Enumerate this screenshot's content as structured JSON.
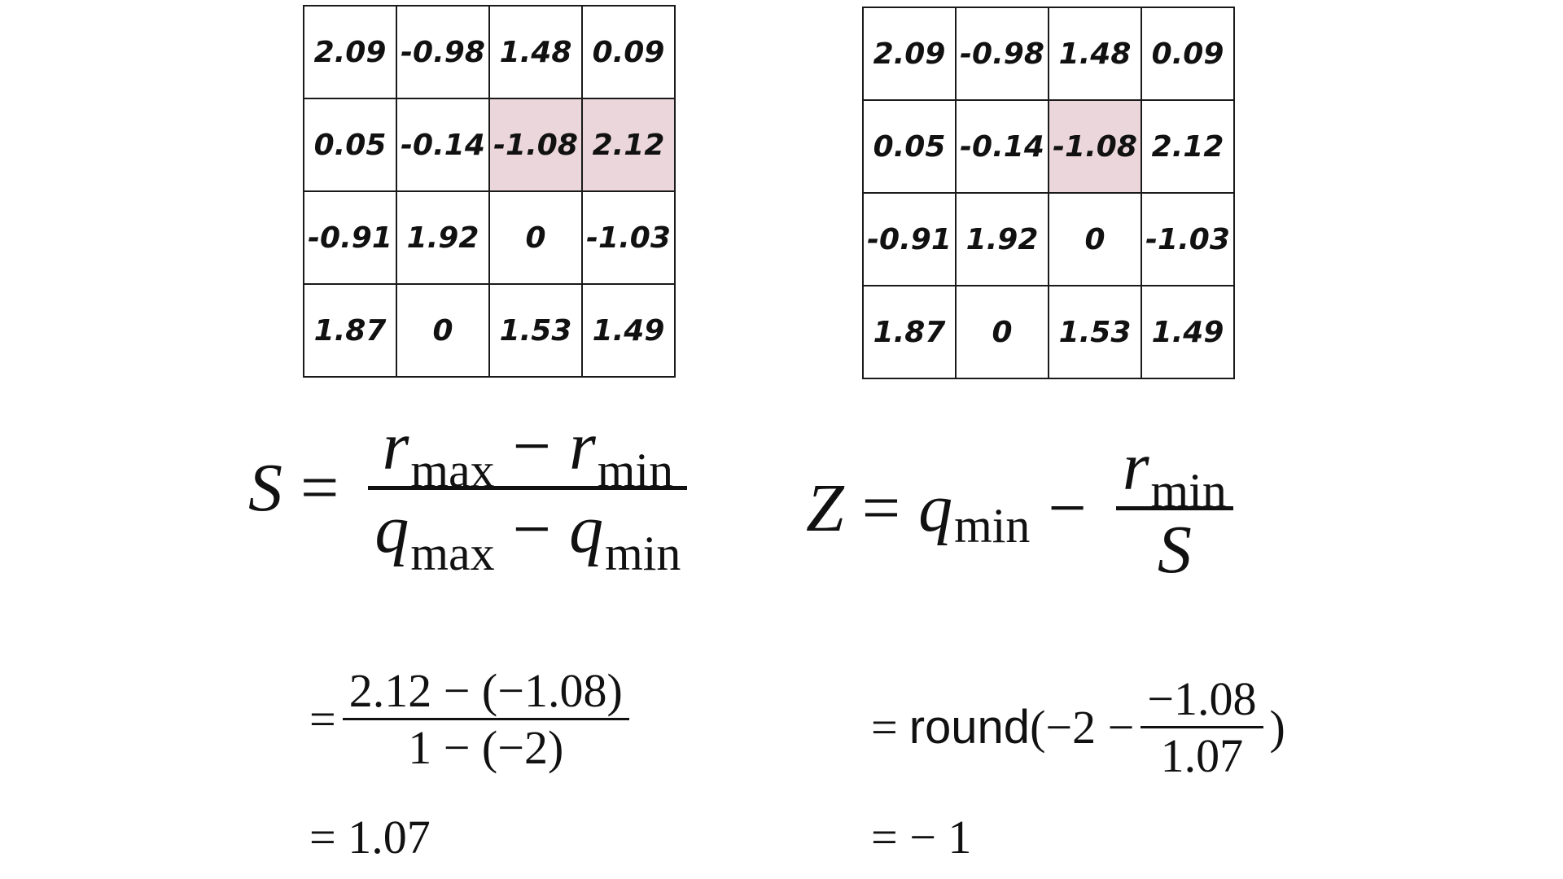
{
  "left_matrix": {
    "rows": [
      [
        "2.09",
        "-0.98",
        "1.48",
        "0.09"
      ],
      [
        "0.05",
        "-0.14",
        "-1.08",
        "2.12"
      ],
      [
        "-0.91",
        "1.92",
        "0",
        "-1.03"
      ],
      [
        "1.87",
        "0",
        "1.53",
        "1.49"
      ]
    ],
    "highlighted_cells": [
      [
        1,
        2
      ],
      [
        1,
        3
      ]
    ]
  },
  "right_matrix": {
    "rows": [
      [
        "2.09",
        "-0.98",
        "1.48",
        "0.09"
      ],
      [
        "0.05",
        "-0.14",
        "-1.08",
        "2.12"
      ],
      [
        "-0.91",
        "1.92",
        "0",
        "-1.03"
      ],
      [
        "1.87",
        "0",
        "1.53",
        "1.49"
      ]
    ],
    "highlighted_cells": [
      [
        1,
        2
      ]
    ]
  },
  "highlight_color": "#ead6db",
  "formula_s": {
    "lhs": "S",
    "equals": "=",
    "num_var1": "r",
    "num_sub1": "max",
    "minus": "−",
    "num_var2": "r",
    "num_sub2": "min",
    "den_var1": "q",
    "den_sub1": "max",
    "den_var2": "q",
    "den_sub2": "min"
  },
  "formula_z": {
    "lhs": "Z",
    "equals": "=",
    "var1": "q",
    "sub1": "min",
    "minus": "−",
    "num_var": "r",
    "num_sub": "min",
    "den": "S"
  },
  "calc_s": {
    "equals": "=",
    "numerator": "2.12 − (−1.08)",
    "denominator": "1 − (−2)",
    "result": "= 1.07"
  },
  "calc_z": {
    "equals": "=",
    "round_label": "round",
    "open": "(−2 −",
    "numerator": "−1.08",
    "denominator": "1.07",
    "close": ")",
    "result": "= − 1"
  }
}
